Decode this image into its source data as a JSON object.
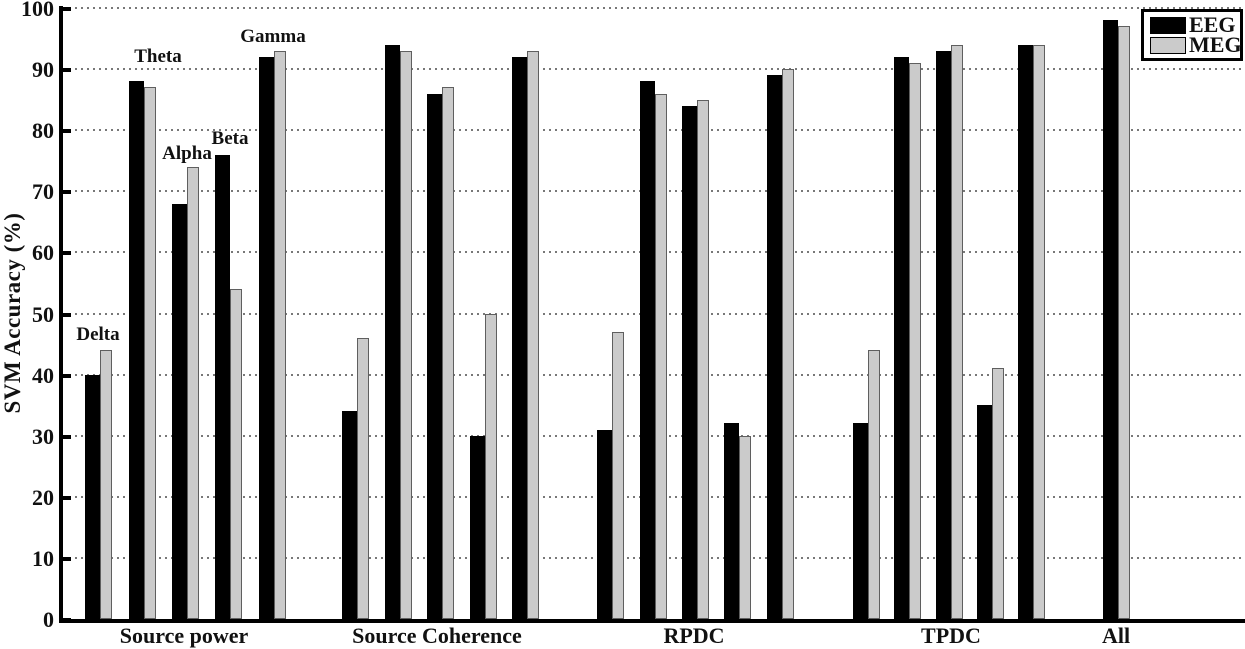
{
  "chart_data": {
    "type": "bar",
    "title": "",
    "ylabel": "SVM Accuracy (%)",
    "xlabel": "",
    "ylim": [
      0,
      100
    ],
    "yticks": [
      0,
      10,
      20,
      30,
      40,
      50,
      60,
      70,
      80,
      90,
      100
    ],
    "grid": "dotted-horizontal",
    "legend_position": "top-right",
    "legend": [
      {
        "label": "EEG",
        "color": "#000000"
      },
      {
        "label": "MEG",
        "color": "#cbcbcb"
      }
    ],
    "band_annotations": [
      "Delta",
      "Theta",
      "Alpha",
      "Beta",
      "Gamma"
    ],
    "categories": [
      "Source power",
      "Source Coherence",
      "RPDC",
      "TPDC",
      "All"
    ],
    "groups": [
      {
        "label": "Source power",
        "bands": [
          "Delta",
          "Theta",
          "Alpha",
          "Beta",
          "Gamma"
        ],
        "series": {
          "EEG": [
            40,
            88,
            68,
            76,
            92
          ],
          "MEG": [
            44,
            87,
            74,
            54,
            93
          ]
        }
      },
      {
        "label": "Source Coherence",
        "bands": [
          "Delta",
          "Theta",
          "Alpha",
          "Beta",
          "Gamma"
        ],
        "series": {
          "EEG": [
            34,
            94,
            86,
            30,
            92
          ],
          "MEG": [
            46,
            93,
            87,
            50,
            93
          ]
        }
      },
      {
        "label": "RPDC",
        "bands": [
          "Delta",
          "Theta",
          "Alpha",
          "Beta",
          "Gamma"
        ],
        "series": {
          "EEG": [
            31,
            88,
            84,
            32,
            89
          ],
          "MEG": [
            47,
            86,
            85,
            30,
            90
          ]
        }
      },
      {
        "label": "TPDC",
        "bands": [
          "Delta",
          "Theta",
          "Alpha",
          "Beta",
          "Gamma"
        ],
        "series": {
          "EEG": [
            32,
            92,
            93,
            35,
            94
          ],
          "MEG": [
            44,
            91,
            94,
            41,
            94
          ]
        }
      },
      {
        "label": "All",
        "bands": [
          "All"
        ],
        "series": {
          "EEG": [
            98
          ],
          "MEG": [
            97
          ]
        }
      }
    ]
  }
}
